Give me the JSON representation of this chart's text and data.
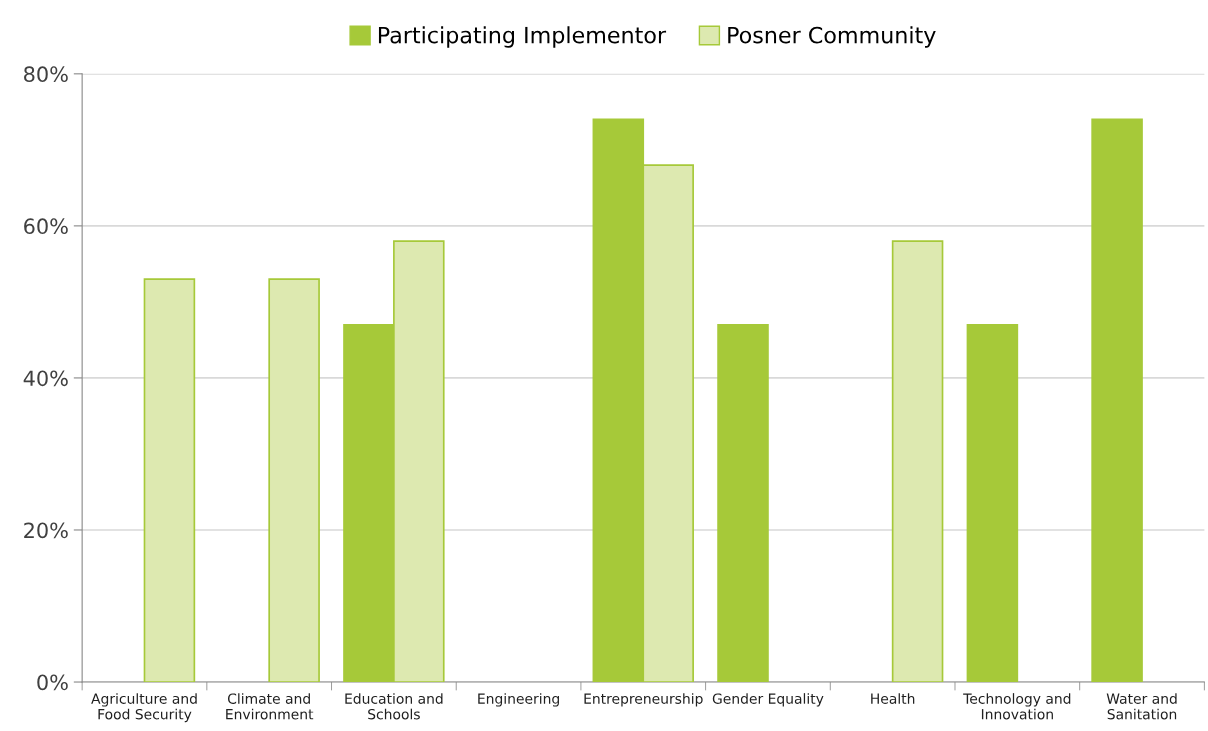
{
  "chart_data": {
    "type": "bar",
    "categories": [
      "Agriculture and\nFood Security",
      "Climate and\nEnvironment",
      "Education and\nSchools",
      "Engineering",
      "Entrepreneurship",
      "Gender Equality",
      "Health",
      "Technology and\nInnovation",
      "Water and\nSanitation"
    ],
    "series": [
      {
        "name": "Participating Implementor",
        "color": "#a6c939",
        "values": [
          null,
          null,
          47,
          null,
          74,
          47,
          null,
          47,
          74
        ]
      },
      {
        "name": "Posner Community",
        "color": "#dde9b0",
        "values": [
          53,
          53,
          58,
          null,
          68,
          null,
          58,
          null,
          null
        ]
      }
    ],
    "ylim": [
      0,
      80
    ],
    "yticks": [
      {
        "value": 0,
        "label": "0%"
      },
      {
        "value": 20,
        "label": "20%"
      },
      {
        "value": 40,
        "label": "40%"
      },
      {
        "value": 60,
        "label": "60%"
      },
      {
        "value": 80,
        "label": "80%"
      }
    ],
    "grid": "y",
    "legend": "top"
  }
}
